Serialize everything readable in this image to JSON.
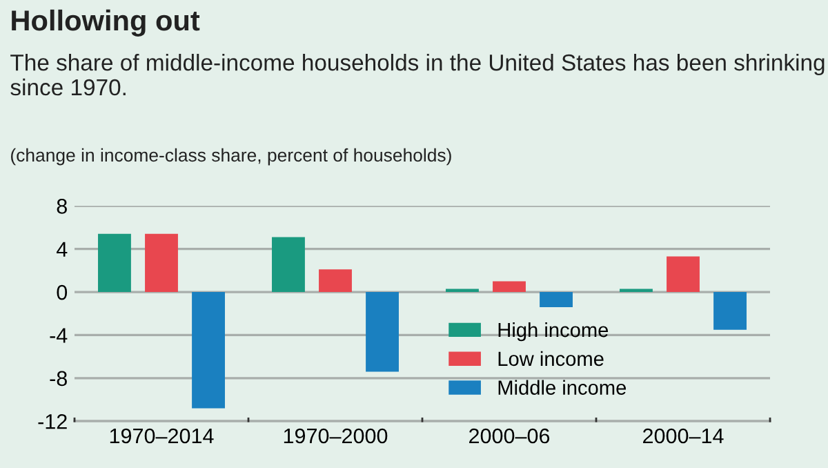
{
  "chart_data": {
    "type": "bar",
    "title": "Hollowing out",
    "subtitle": "The share of middle-income households in the United States has been shrinking since 1970.",
    "ylabel": "(change in income-class share, percent of households)",
    "categories": [
      "1970–2014",
      "1970–2000",
      "2000–06",
      "2000–14"
    ],
    "series": [
      {
        "name": "High income",
        "color": "#1a9a80",
        "values": [
          5.4,
          5.1,
          0.3,
          0.3
        ]
      },
      {
        "name": "Low income",
        "color": "#e8474f",
        "values": [
          5.4,
          2.1,
          1.0,
          3.3
        ]
      },
      {
        "name": "Middle income",
        "color": "#1a80c0",
        "values": [
          -10.8,
          -7.4,
          -1.4,
          -3.5
        ]
      }
    ],
    "ylim": [
      -12,
      8
    ],
    "yticks": [
      -12,
      -8,
      -4,
      0,
      4,
      8
    ],
    "grid": "y",
    "legend": "bottom right"
  }
}
